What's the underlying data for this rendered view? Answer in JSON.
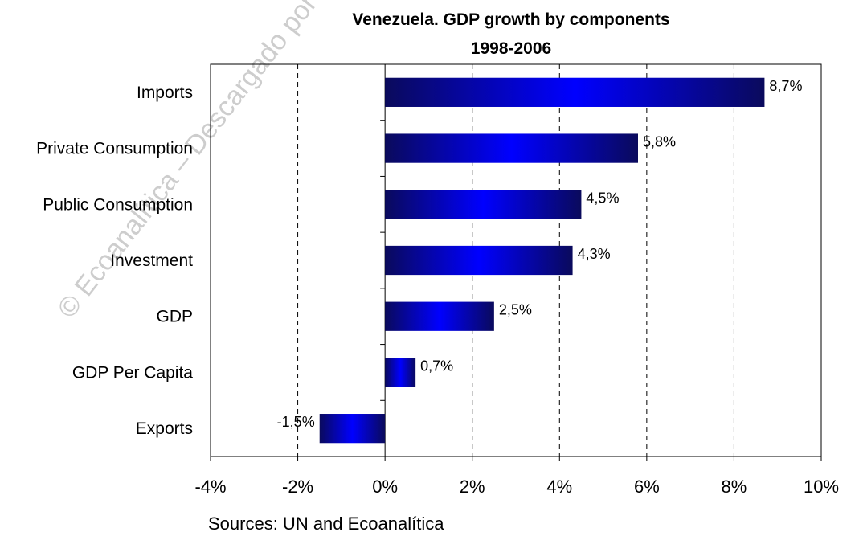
{
  "chart_data": {
    "type": "bar",
    "orientation": "horizontal",
    "title": "Venezuela. GDP growth by components",
    "subtitle": "1998-2006",
    "categories": [
      "Imports",
      "Private Consumption",
      "Public Consumption",
      "Investment",
      "GDP",
      "GDP Per Capita",
      "Exports"
    ],
    "values": [
      8.7,
      5.8,
      4.5,
      4.3,
      2.5,
      0.7,
      -1.5
    ],
    "data_labels": [
      "8,7%",
      "5,8%",
      "4,5%",
      "4,3%",
      "2,5%",
      "0,7%",
      "-1,5%"
    ],
    "xlim": [
      -4,
      10
    ],
    "x_ticks": [
      -4,
      -2,
      0,
      2,
      4,
      6,
      8,
      10
    ],
    "x_tick_labels": [
      "-4%",
      "-2%",
      "0%",
      "2%",
      "4%",
      "6%",
      "8%",
      "10%"
    ],
    "xlabel": "",
    "ylabel": "",
    "grid": "vertical dashed",
    "legend": "none",
    "bar_colors": {
      "dark": "#0a0a5c",
      "bright": "#0000ff"
    }
  },
  "source_note": "Sources:  UN and Ecoanalítica",
  "watermark": "© Ecoanalítica – Descargado por"
}
